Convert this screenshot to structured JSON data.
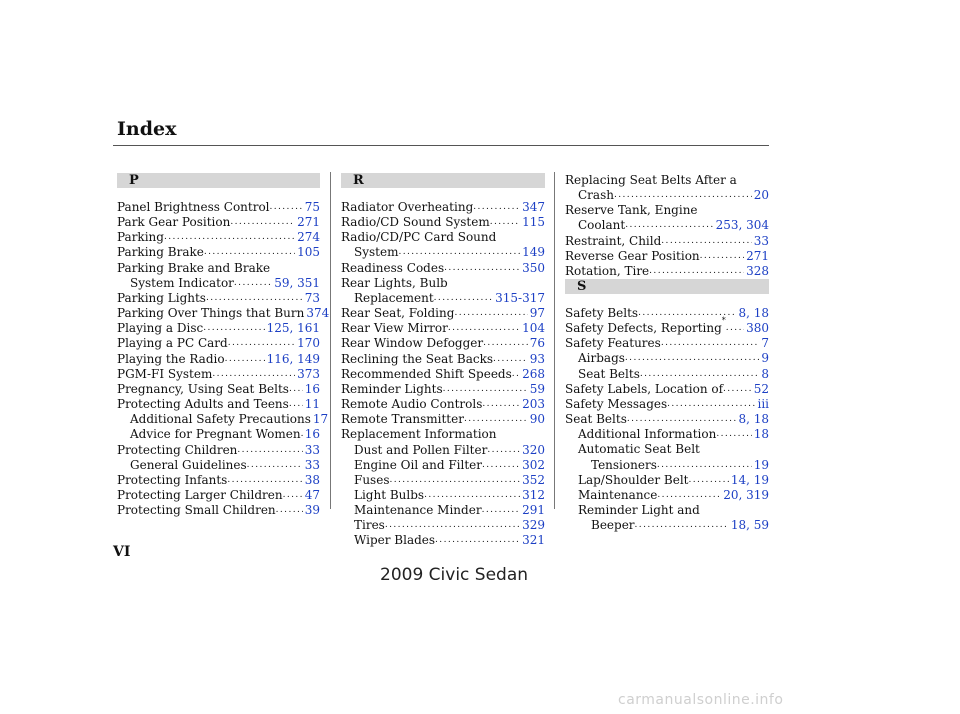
{
  "header": {
    "title": "Index"
  },
  "sections": {
    "p": "P",
    "r": "R",
    "s": "S"
  },
  "col1": [
    {
      "text": "Panel Brightness Control",
      "pages": "75",
      "indent": 0
    },
    {
      "text": "Park Gear Position",
      "pages": "271",
      "indent": 0
    },
    {
      "text": "Parking",
      "pages": "274",
      "indent": 0
    },
    {
      "text": "Parking Brake",
      "pages": "105",
      "indent": 0
    },
    {
      "text": "Parking Brake and Brake",
      "pages": "",
      "indent": 0
    },
    {
      "text": "System Indicator",
      "pages": "59, 351",
      "indent": 1
    },
    {
      "text": "Parking Lights",
      "pages": "73",
      "indent": 0
    },
    {
      "text": "Parking Over Things that Burn",
      "pages": "374",
      "indent": 0
    },
    {
      "text": "Playing a Disc",
      "pages": "125, 161",
      "indent": 0
    },
    {
      "text": "Playing a PC Card",
      "pages": "170",
      "indent": 0
    },
    {
      "text": "Playing the Radio",
      "pages": "116, 149",
      "indent": 0
    },
    {
      "text": "PGM-FI System",
      "pages": "373",
      "indent": 0
    },
    {
      "text": "Pregnancy, Using Seat Belts",
      "pages": "16",
      "indent": 0
    },
    {
      "text": "Protecting Adults and Teens",
      "pages": "11",
      "indent": 0
    },
    {
      "text": "Additional Safety Precautions",
      "pages": "17",
      "indent": 1
    },
    {
      "text": "Advice for Pregnant Women",
      "pages": "16",
      "indent": 1
    },
    {
      "text": "Protecting Children",
      "pages": "33",
      "indent": 0
    },
    {
      "text": "General Guidelines",
      "pages": "33",
      "indent": 1
    },
    {
      "text": "Protecting Infants",
      "pages": "38",
      "indent": 0
    },
    {
      "text": "Protecting Larger Children",
      "pages": "47",
      "indent": 0
    },
    {
      "text": "Protecting Small Children",
      "pages": "39",
      "indent": 0
    }
  ],
  "col2": [
    {
      "text": "Radiator Overheating",
      "pages": "347",
      "indent": 0
    },
    {
      "text": "Radio/CD Sound System",
      "pages": "115",
      "indent": 0
    },
    {
      "text": "Radio/CD/PC Card Sound",
      "pages": "",
      "indent": 0
    },
    {
      "text": "System",
      "pages": "149",
      "indent": 1
    },
    {
      "text": "Readiness Codes",
      "pages": "350",
      "indent": 0
    },
    {
      "text": "Rear Lights, Bulb",
      "pages": "",
      "indent": 0
    },
    {
      "text": "Replacement",
      "pages": "315-317",
      "indent": 1
    },
    {
      "text": "Rear Seat, Folding",
      "pages": "97",
      "indent": 0
    },
    {
      "text": "Rear View Mirror",
      "pages": "104",
      "indent": 0
    },
    {
      "text": "Rear Window Defogger",
      "pages": "76",
      "indent": 0
    },
    {
      "text": "Reclining the Seat Backs",
      "pages": "93",
      "indent": 0
    },
    {
      "text": "Recommended Shift Speeds",
      "pages": "268",
      "indent": 0
    },
    {
      "text": "Reminder Lights",
      "pages": "59",
      "indent": 0
    },
    {
      "text": "Remote Audio Controls",
      "pages": "203",
      "indent": 0
    },
    {
      "text": "Remote Transmitter",
      "pages": "90",
      "indent": 0
    },
    {
      "text": "Replacement Information",
      "pages": "",
      "indent": 0
    },
    {
      "text": "Dust and Pollen Filter",
      "pages": "320",
      "indent": 1
    },
    {
      "text": "Engine Oil and Filter",
      "pages": "302",
      "indent": 1
    },
    {
      "text": "Fuses",
      "pages": "352",
      "indent": 1
    },
    {
      "text": "Light Bulbs",
      "pages": "312",
      "indent": 1
    },
    {
      "text": "Maintenance Minder",
      "pages": "291",
      "indent": 1
    },
    {
      "text": "Tires",
      "pages": "329",
      "indent": 1
    },
    {
      "text": "Wiper Blades",
      "pages": "321",
      "indent": 1
    }
  ],
  "col3a": [
    {
      "text": "Replacing Seat Belts After a",
      "pages": "",
      "indent": 0
    },
    {
      "text": "Crash",
      "pages": "20",
      "indent": 1
    },
    {
      "text": "Reserve Tank, Engine",
      "pages": "",
      "indent": 0
    },
    {
      "text": "Coolant",
      "pages": "253, 304",
      "indent": 1
    },
    {
      "text": "Restraint, Child",
      "pages": "33",
      "indent": 0
    },
    {
      "text": "Reverse Gear Position",
      "pages": "271",
      "indent": 0
    },
    {
      "text": "Rotation, Tire",
      "pages": "328",
      "indent": 0
    }
  ],
  "col3b": [
    {
      "text": "Safety Belts",
      "pages": "8, 18",
      "indent": 0
    },
    {
      "text": "Safety Defects, Reporting",
      "sup": "*",
      "pages": "380",
      "indent": 0
    },
    {
      "text": "Safety Features",
      "pages": "7",
      "indent": 0
    },
    {
      "text": "Airbags",
      "pages": "9",
      "indent": 1
    },
    {
      "text": "Seat Belts",
      "pages": "8",
      "indent": 1
    },
    {
      "text": "Safety Labels, Location of",
      "pages": "52",
      "indent": 0
    },
    {
      "text": "Safety Messages",
      "pages": "iii",
      "indent": 0
    },
    {
      "text": "Seat Belts",
      "pages": "8, 18",
      "indent": 0
    },
    {
      "text": "Additional Information",
      "pages": "18",
      "indent": 1
    },
    {
      "text": "Automatic Seat Belt",
      "pages": "",
      "indent": 1
    },
    {
      "text": "Tensioners",
      "pages": "19",
      "indent": 2
    },
    {
      "text": "Lap/Shoulder Belt",
      "pages": "14, 19",
      "indent": 1
    },
    {
      "text": "Maintenance",
      "pages": "20, 319",
      "indent": 1
    },
    {
      "text": "Reminder Light and",
      "pages": "",
      "indent": 1
    },
    {
      "text": "Beeper",
      "pages": "18, 59",
      "indent": 2
    }
  ],
  "footer": {
    "page_number": "VI",
    "watermark": "2009  Civic  Sedan",
    "site": "carmanualsonline.info"
  }
}
